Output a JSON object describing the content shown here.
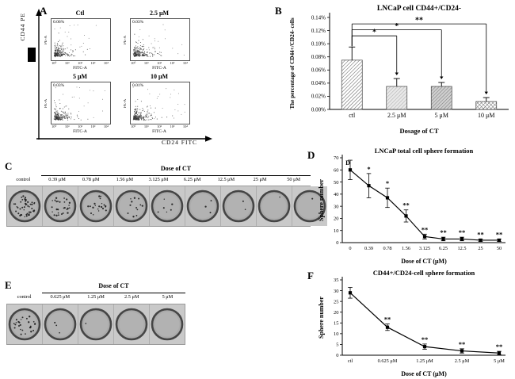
{
  "panels": {
    "A": {
      "label": "A",
      "y_axis_label": "CD44  PE",
      "x_axis_label": "CD24  FITC",
      "log_ticks": [
        "10⁰",
        "10¹",
        "10²",
        "10³",
        "10⁴"
      ],
      "plots": [
        {
          "title": "Ctl",
          "percent": "0.06%",
          "x_label": "FITC-A",
          "y_label": "PE-A"
        },
        {
          "title": "2.5 μM",
          "percent": "0.03%",
          "x_label": "FITC-A",
          "y_label": "PE-A"
        },
        {
          "title": "5 μM",
          "percent": "0.03%",
          "x_label": "FITC-A",
          "y_label": "PE-A"
        },
        {
          "title": "10 μM",
          "percent": "0.01%",
          "x_label": "FITC-A",
          "y_label": "PE-A"
        }
      ]
    },
    "B": {
      "label": "B"
    },
    "C": {
      "label": "C",
      "header": "Dose of CT",
      "doses": [
        "control",
        "0.39 μM",
        "0.78 μM",
        "1.56 μM",
        "3.125 μM",
        "6.25 μM",
        "12.5 μM",
        "25 μM",
        "50 μM"
      ],
      "sphere_dot_counts": [
        45,
        28,
        20,
        12,
        6,
        3,
        2,
        1,
        1
      ]
    },
    "D": {
      "label": "D"
    },
    "E": {
      "label": "E",
      "header": "Dose of CT",
      "doses": [
        "control",
        "0.625 μM",
        "1.25 μM",
        "2.5 μM",
        "5 μM"
      ],
      "sphere_dot_counts": [
        26,
        3,
        1,
        0,
        0
      ]
    },
    "F": {
      "label": "F"
    }
  },
  "chart_data": [
    {
      "id": "B",
      "type": "bar",
      "title": "LNCaP cell CD44+/CD24-",
      "categories": [
        "ctl",
        "2.5 μM",
        "5 μM",
        "10 μM"
      ],
      "values": [
        0.075,
        0.035,
        0.035,
        0.012
      ],
      "errors": [
        0.02,
        0.012,
        0.006,
        0.006
      ],
      "ylabel": "The percentage of CD44+/CD24- cells",
      "xlabel": "Dosage of CT",
      "ylim": [
        0,
        0.14
      ],
      "ytick_step": 0.02,
      "ytick_format": "percent",
      "grid": false,
      "legend": false,
      "significance": [
        {
          "from": 0,
          "to": 1,
          "label": "*"
        },
        {
          "from": 0,
          "to": 2,
          "label": "*"
        },
        {
          "from": 0,
          "to": 3,
          "label": "**"
        }
      ]
    },
    {
      "id": "D",
      "type": "line",
      "title": "LNCaP total cell sphere formation",
      "inner_label": "D",
      "categories": [
        "0",
        "0.39",
        "0.78",
        "1.56",
        "3.125",
        "6.25",
        "12.5",
        "25",
        "50"
      ],
      "values": [
        60,
        47,
        37,
        22,
        5,
        3,
        3,
        2,
        2
      ],
      "errors": [
        8,
        10,
        8,
        5,
        2,
        1.5,
        1.5,
        1,
        1
      ],
      "point_labels": [
        "",
        "*",
        "*",
        "**",
        "**",
        "**",
        "**",
        "**",
        "**"
      ],
      "ylabel": "Sphere number",
      "xlabel": "Dose of CT (μM)",
      "ylim": [
        0,
        70
      ],
      "ytick_step": 10,
      "grid": false,
      "legend": false
    },
    {
      "id": "F",
      "type": "line",
      "title": "CD44+/CD24-cell sphere formation",
      "categories": [
        "ctl",
        "0.625 μM",
        "1.25 μM",
        "2.5 μM",
        "5 μM"
      ],
      "values": [
        29,
        13,
        4,
        2,
        1
      ],
      "errors": [
        2.5,
        1.5,
        1.2,
        1,
        0.8
      ],
      "point_labels": [
        "",
        "**",
        "**",
        "**",
        "**"
      ],
      "ylabel": "Sphere number",
      "xlabel": "Dose of CT (μM)",
      "ylim": [
        0,
        35
      ],
      "ytick_step": 5,
      "grid": false,
      "legend": false
    }
  ]
}
